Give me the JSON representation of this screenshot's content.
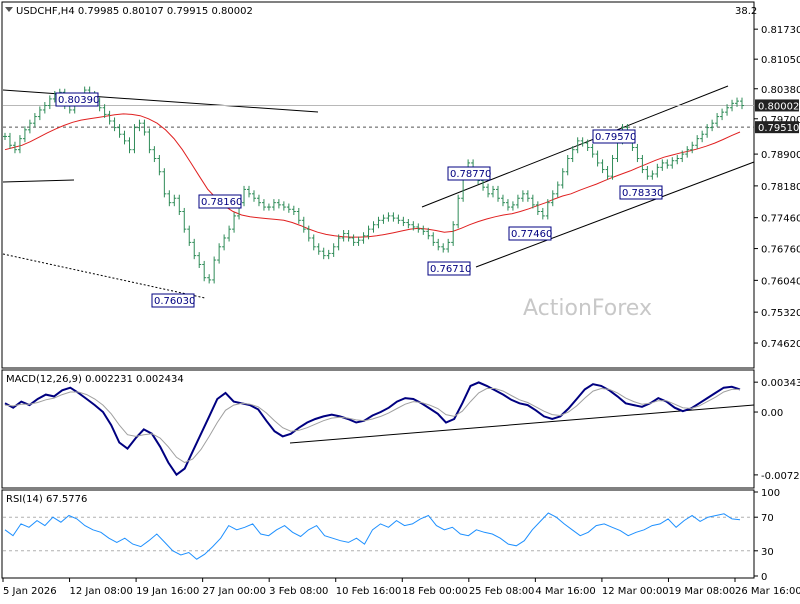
{
  "watermark": "ActionForex",
  "chart_data": [
    {
      "type": "line",
      "pane": "price",
      "title": "USDCHF,H4  0.79985 0.80107 0.79915 0.80002",
      "corner_label": "38.2",
      "ylim": [
        0.741,
        0.823
      ],
      "y_ticks": [
        {
          "value": 0.8173,
          "label": "0.81730"
        },
        {
          "value": 0.8105,
          "label": "0.81050"
        },
        {
          "value": 0.8038,
          "label": "0.80380"
        },
        {
          "value": 0.797,
          "label": "0.79700"
        },
        {
          "value": 0.789,
          "label": "0.78900"
        },
        {
          "value": 0.7818,
          "label": "0.78180"
        },
        {
          "value": 0.7746,
          "label": "0.77460"
        },
        {
          "value": 0.7676,
          "label": "0.76760"
        },
        {
          "value": 0.7604,
          "label": "0.76040"
        },
        {
          "value": 0.7532,
          "label": "0.75320"
        },
        {
          "value": 0.7462,
          "label": "0.74620"
        }
      ],
      "x_ticks": [
        "5 Jan 2026",
        "12 Jan 08:00",
        "19 Jan 16:00",
        "27 Jan 00:00",
        "3 Feb 08:00",
        "10 Feb 16:00",
        "18 Feb 00:00",
        "25 Feb 08:00",
        "4 Mar 16:00",
        "12 Mar 00:00",
        "19 Mar 08:00",
        "26 Mar 16:00"
      ],
      "series": [
        {
          "role": "price",
          "color": "#2e8b57",
          "values": [
            0.793,
            0.791,
            0.79,
            0.7925,
            0.7945,
            0.796,
            0.7975,
            0.799,
            0.8,
            0.8015,
            0.8025,
            0.803,
            0.8,
            0.799,
            0.801,
            0.802,
            0.8035,
            0.8025,
            0.801,
            0.7995,
            0.798,
            0.7965,
            0.795,
            0.7935,
            0.792,
            0.79,
            0.795,
            0.796,
            0.794,
            0.79,
            0.788,
            0.785,
            0.78,
            0.778,
            0.779,
            0.776,
            0.772,
            0.769,
            0.766,
            0.764,
            0.761,
            0.7605,
            0.765,
            0.768,
            0.77,
            0.772,
            0.775,
            0.778,
            0.781,
            0.78,
            0.779,
            0.778,
            0.777,
            0.777,
            0.778,
            0.7775,
            0.777,
            0.7765,
            0.776,
            0.774,
            0.772,
            0.77,
            0.768,
            0.767,
            0.766,
            0.7665,
            0.768,
            0.77,
            0.771,
            0.77,
            0.769,
            0.7695,
            0.7705,
            0.772,
            0.773,
            0.774,
            0.7745,
            0.775,
            0.7745,
            0.774,
            0.7735,
            0.773,
            0.7725,
            0.772,
            0.7715,
            0.7705,
            0.769,
            0.768,
            0.7675,
            0.769,
            0.773,
            0.779,
            0.784,
            0.787,
            0.785,
            0.783,
            0.7815,
            0.78,
            0.781,
            0.779,
            0.778,
            0.777,
            0.7775,
            0.779,
            0.78,
            0.779,
            0.7775,
            0.776,
            0.775,
            0.778,
            0.78,
            0.782,
            0.785,
            0.788,
            0.79,
            0.792,
            0.7915,
            0.7905,
            0.789,
            0.787,
            0.7855,
            0.784,
            0.788,
            0.792,
            0.795,
            0.793,
            0.7905,
            0.788,
            0.7855,
            0.784,
            0.7845,
            0.786,
            0.787,
            0.7865,
            0.7875,
            0.788,
            0.789,
            0.79,
            0.791,
            0.7925,
            0.7935,
            0.795,
            0.796,
            0.7975,
            0.7985,
            0.7995,
            0.8005,
            0.801,
            0.8
          ]
        },
        {
          "role": "moving-average",
          "color": "#e02020",
          "values": [
            0.79,
            0.7905,
            0.791,
            0.7918,
            0.7928,
            0.7938,
            0.7947,
            0.7955,
            0.7962,
            0.7967,
            0.797,
            0.7973,
            0.7976,
            0.7979,
            0.7981,
            0.798,
            0.7977,
            0.797,
            0.796,
            0.7945,
            0.7925,
            0.79,
            0.787,
            0.784,
            0.781,
            0.779,
            0.7772,
            0.776,
            0.7752,
            0.7748,
            0.7746,
            0.7744,
            0.7742,
            0.774,
            0.7735,
            0.7728,
            0.772,
            0.7713,
            0.7708,
            0.7705,
            0.7703,
            0.7702,
            0.7702,
            0.7703,
            0.7705,
            0.7708,
            0.7712,
            0.7716,
            0.772,
            0.7722,
            0.772,
            0.7717,
            0.7713,
            0.7715,
            0.7722,
            0.773,
            0.7737,
            0.7743,
            0.7748,
            0.7752,
            0.7755,
            0.776,
            0.7766,
            0.7773,
            0.778,
            0.7788,
            0.7795,
            0.78,
            0.7808,
            0.7815,
            0.7822,
            0.783,
            0.7838,
            0.7845,
            0.7852,
            0.786,
            0.7868,
            0.7876,
            0.7883,
            0.7888,
            0.7893,
            0.7897,
            0.7902,
            0.7908,
            0.7915,
            0.7923,
            0.7932,
            0.794
          ]
        },
        {
          "role": "horizontal-level",
          "color": "#b8b8b8",
          "value": 0.80002
        },
        {
          "role": "horizontal-level",
          "color": "#555555",
          "style": "dashed",
          "value": 0.7951
        }
      ],
      "price_tags": [
        {
          "label": "0.80002",
          "value": 0.80002,
          "color": "#222222"
        },
        {
          "label": "0.79510",
          "value": 0.7951,
          "color": "#222222"
        }
      ],
      "annotations": [
        "0.80390",
        "0.78160",
        "0.76030",
        "0.78770",
        "0.76710",
        "0.77460",
        "0.79570",
        "0.78330"
      ]
    },
    {
      "type": "line",
      "pane": "macd",
      "title": "MACD(12,26,9) 0.002231 0.002434",
      "ylim": [
        -0.0085,
        0.0046
      ],
      "y_ticks": [
        {
          "value": 0.003432,
          "label": "0.003432"
        },
        {
          "value": 0.0,
          "label": "0.00"
        },
        {
          "value": -0.007223,
          "label": "-0.007223"
        }
      ],
      "series": [
        {
          "role": "macd",
          "color": "#000080",
          "values": [
            0.001,
            0.0005,
            0.0012,
            0.0008,
            0.0015,
            0.002,
            0.0018,
            0.0025,
            0.0028,
            0.0022,
            0.0015,
            0.0008,
            0.0,
            -0.0015,
            -0.0035,
            -0.0042,
            -0.003,
            -0.002,
            -0.0025,
            -0.004,
            -0.0058,
            -0.0072,
            -0.0065,
            -0.0045,
            -0.0025,
            -0.0005,
            0.0015,
            0.0022,
            0.0012,
            0.001,
            0.0008,
            0.0003,
            -0.001,
            -0.0022,
            -0.0028,
            -0.0025,
            -0.0018,
            -0.0012,
            -0.0008,
            -0.0005,
            -0.0003,
            -0.0005,
            -0.0008,
            -0.0012,
            -0.001,
            -0.0004,
            0.0,
            0.0005,
            0.0012,
            0.0016,
            0.0015,
            0.001,
            0.0004,
            -0.0002,
            -0.0012,
            -0.0008,
            0.001,
            0.003,
            0.0034,
            0.003,
            0.0025,
            0.002,
            0.0014,
            0.001,
            0.0008,
            0.0002,
            -0.0005,
            -0.0008,
            -0.0005,
            0.0004,
            0.0015,
            0.0026,
            0.0032,
            0.003,
            0.0025,
            0.0018,
            0.001,
            0.0008,
            0.0006,
            0.001,
            0.0016,
            0.0012,
            0.0005,
            0.0001,
            0.0004,
            0.001,
            0.0016,
            0.0022,
            0.0028,
            0.0029,
            0.0026
          ]
        },
        {
          "role": "signal",
          "color": "#a0a0a0",
          "values": [
            0.0008,
            0.0007,
            0.0009,
            0.0009,
            0.0011,
            0.0014,
            0.0016,
            0.002,
            0.0023,
            0.0023,
            0.002,
            0.0015,
            0.0008,
            -0.0002,
            -0.0015,
            -0.0026,
            -0.0028,
            -0.0026,
            -0.0025,
            -0.003,
            -0.004,
            -0.0052,
            -0.0058,
            -0.0054,
            -0.0043,
            -0.0028,
            -0.0012,
            0.0002,
            0.0008,
            0.001,
            0.0009,
            0.0006,
            -0.0001,
            -0.001,
            -0.0018,
            -0.0022,
            -0.0021,
            -0.0018,
            -0.0014,
            -0.001,
            -0.0007,
            -0.0006,
            -0.0007,
            -0.0009,
            -0.001,
            -0.0008,
            -0.0005,
            -0.0001,
            0.0004,
            0.0009,
            0.0012,
            0.0011,
            0.0008,
            0.0004,
            -0.0003,
            -0.0005,
            0.0001,
            0.0012,
            0.0022,
            0.0027,
            0.0027,
            0.0024,
            0.0019,
            0.0014,
            0.0011,
            0.0006,
            0.0001,
            -0.0003,
            -0.0004,
            0.0,
            0.0007,
            0.0016,
            0.0024,
            0.0027,
            0.0026,
            0.0022,
            0.0016,
            0.0012,
            0.0009,
            0.001,
            0.0013,
            0.0013,
            0.0009,
            0.0005,
            0.0004,
            0.0007,
            0.0012,
            0.0017,
            0.0023,
            0.0026,
            0.0026
          ]
        }
      ]
    },
    {
      "type": "line",
      "pane": "rsi",
      "title": "RSI(14) 67.5776",
      "ylim": [
        0,
        100
      ],
      "y_ticks": [
        {
          "value": 100,
          "label": "100"
        },
        {
          "value": 70,
          "label": "70"
        },
        {
          "value": 30,
          "label": "30"
        },
        {
          "value": 0,
          "label": "0"
        }
      ],
      "series": [
        {
          "role": "rsi",
          "color": "#1e90ff",
          "values": [
            55,
            48,
            62,
            58,
            66,
            60,
            70,
            64,
            72,
            68,
            60,
            55,
            52,
            45,
            40,
            45,
            38,
            35,
            42,
            50,
            40,
            30,
            25,
            28,
            20,
            26,
            35,
            45,
            60,
            55,
            58,
            62,
            50,
            48,
            55,
            60,
            52,
            47,
            55,
            60,
            48,
            45,
            42,
            40,
            45,
            38,
            55,
            62,
            58,
            66,
            60,
            62,
            68,
            72,
            60,
            55,
            58,
            50,
            48,
            55,
            52,
            50,
            45,
            38,
            36,
            42,
            55,
            65,
            75,
            70,
            62,
            55,
            48,
            52,
            60,
            62,
            58,
            54,
            48,
            52,
            55,
            60,
            62,
            68,
            58,
            66,
            72,
            65,
            70,
            72,
            74,
            68,
            67
          ]
        }
      ]
    }
  ]
}
